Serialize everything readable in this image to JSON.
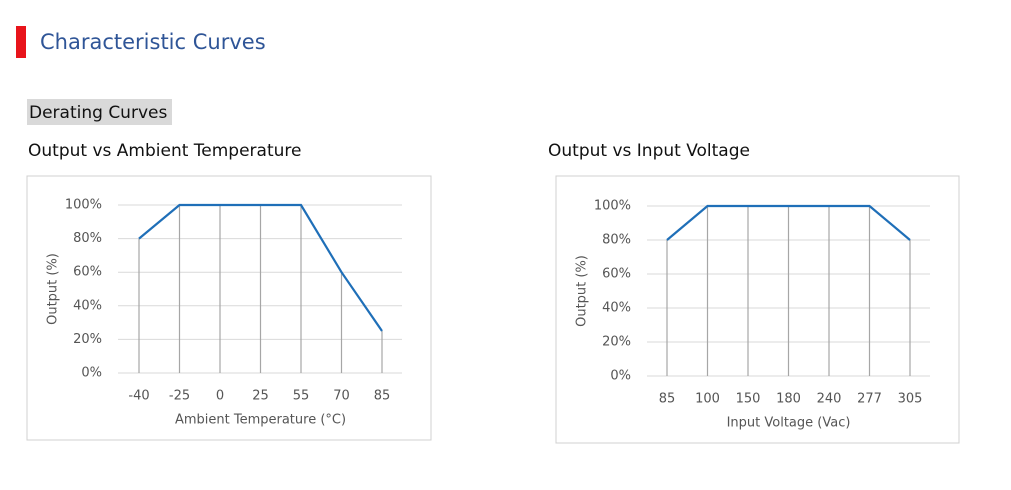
{
  "header": {
    "title": "Characteristic Curves",
    "subtitle": "Derating Curves"
  },
  "chart_data": [
    {
      "type": "line",
      "title": "Output vs Ambient Temperature",
      "x_label": "Ambient Temperature (°C)",
      "y_label": "Output (%)",
      "categories": [
        "-40",
        "-25",
        "0",
        "25",
        "55",
        "70",
        "85"
      ],
      "values": [
        80,
        100,
        100,
        100,
        100,
        60,
        25
      ],
      "color": "#1f6fb8",
      "ylim": [
        0,
        100
      ],
      "yticks": [
        {
          "value": 0,
          "label": "0%"
        },
        {
          "value": 20,
          "label": "20%"
        },
        {
          "value": 40,
          "label": "40%"
        },
        {
          "value": 60,
          "label": "60%"
        },
        {
          "value": 80,
          "label": "80%"
        },
        {
          "value": 100,
          "label": "100%"
        }
      ],
      "grid": true
    },
    {
      "type": "line",
      "title": "Output vs Input Voltage",
      "x_label": "Input Voltage (Vac)",
      "y_label": "Output (%)",
      "categories": [
        "85",
        "100",
        "150",
        "180",
        "240",
        "277",
        "305"
      ],
      "values": [
        80,
        100,
        100,
        100,
        100,
        100,
        80
      ],
      "color": "#1f6fb8",
      "ylim": [
        0,
        100
      ],
      "yticks": [
        {
          "value": 0,
          "label": "0%"
        },
        {
          "value": 20,
          "label": "20%"
        },
        {
          "value": 40,
          "label": "40%"
        },
        {
          "value": 60,
          "label": "60%"
        },
        {
          "value": 80,
          "label": "80%"
        },
        {
          "value": 100,
          "label": "100%"
        }
      ],
      "grid": true
    }
  ]
}
